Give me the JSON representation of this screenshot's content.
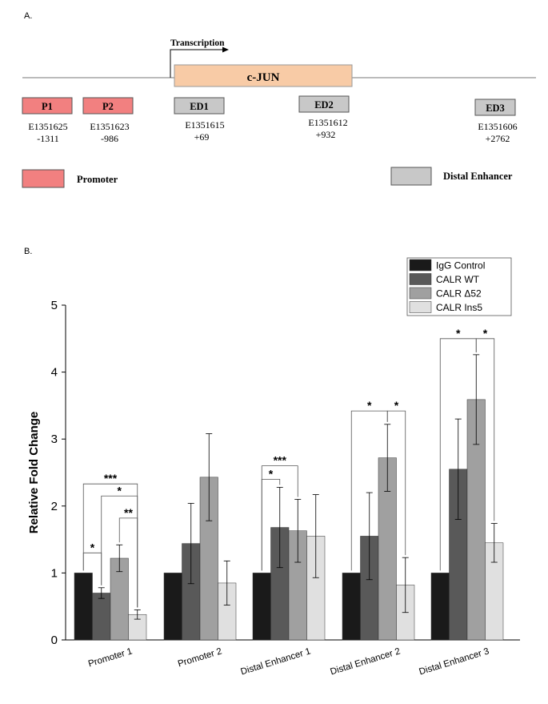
{
  "panel_a": {
    "label": "A.",
    "transcription_label": "Transcription",
    "gene_label": "c-JUN",
    "elements": [
      {
        "name": "P1",
        "id_code": "E1351625",
        "position": "-1311",
        "kind": "promoter"
      },
      {
        "name": "P2",
        "id_code": "E1351623",
        "position": "-986",
        "kind": "promoter"
      },
      {
        "name": "ED1",
        "id_code": "E1351615",
        "position": "+69",
        "kind": "enhancer"
      },
      {
        "name": "ED2",
        "id_code": "E1351612",
        "position": "+932",
        "kind": "enhancer"
      },
      {
        "name": "ED3",
        "id_code": "E1351606",
        "position": "+2762",
        "kind": "enhancer"
      }
    ],
    "legend": {
      "promoter": "Promoter",
      "enhancer": "Distal Enhancer"
    },
    "colors": {
      "promoter": "#f28080",
      "enhancer": "#c8c8c8",
      "gene": "#f8cba6"
    }
  },
  "panel_b": {
    "label": "B."
  },
  "chart_data": {
    "type": "bar",
    "title": "",
    "xlabel": "",
    "ylabel": "Relative Fold Change",
    "ylim": [
      0,
      5
    ],
    "yticks": [
      0,
      1,
      2,
      3,
      4,
      5
    ],
    "categories": [
      "Promoter 1",
      "Promoter 2",
      "Distal Enhancer 1",
      "Distal Enhancer 2",
      "Distal Enhancer 3"
    ],
    "series": [
      {
        "name": "IgG Control",
        "color": "#1a1a1a",
        "values": [
          1.0,
          1.0,
          1.0,
          1.0,
          1.0
        ],
        "errors": [
          0,
          0,
          0,
          0,
          0
        ]
      },
      {
        "name": "CALR WT",
        "color": "#595959",
        "values": [
          0.7,
          1.44,
          1.68,
          1.55,
          2.55
        ],
        "errors": [
          0.08,
          0.6,
          0.6,
          0.65,
          0.75
        ]
      },
      {
        "name": "CALR Δ52",
        "color": "#a0a0a0",
        "values": [
          1.22,
          2.43,
          1.63,
          2.72,
          3.59
        ],
        "errors": [
          0.2,
          0.65,
          0.47,
          0.5,
          0.67
        ]
      },
      {
        "name": "CALR Ins5",
        "color": "#e0e0e0",
        "values": [
          0.38,
          0.85,
          1.55,
          0.82,
          1.45
        ],
        "errors": [
          0.07,
          0.33,
          0.62,
          0.41,
          0.29
        ]
      }
    ],
    "significance": [
      {
        "category": 0,
        "from": 0,
        "to": 1,
        "label": "*",
        "level": 1.3
      },
      {
        "category": 0,
        "from": 0,
        "to": 3,
        "label": "***",
        "level": 2.33
      },
      {
        "category": 0,
        "from": 1,
        "to": 3,
        "label": "*",
        "level": 2.15
      },
      {
        "category": 0,
        "from": 2,
        "to": 3,
        "label": "**",
        "level": 1.82
      },
      {
        "category": 2,
        "from": 0,
        "to": 1,
        "label": "*",
        "level": 2.4
      },
      {
        "category": 2,
        "from": 0,
        "to": 2,
        "label": "***",
        "level": 2.6
      },
      {
        "category": 3,
        "from": 0,
        "to": 2,
        "label": "*",
        "level": 3.42
      },
      {
        "category": 3,
        "from": 2,
        "to": 3,
        "label": "*",
        "level": 3.42
      },
      {
        "category": 4,
        "from": 0,
        "to": 2,
        "label": "*",
        "level": 4.5
      },
      {
        "category": 4,
        "from": 2,
        "to": 3,
        "label": "*",
        "level": 4.5
      }
    ],
    "legend_position": "top-right"
  }
}
